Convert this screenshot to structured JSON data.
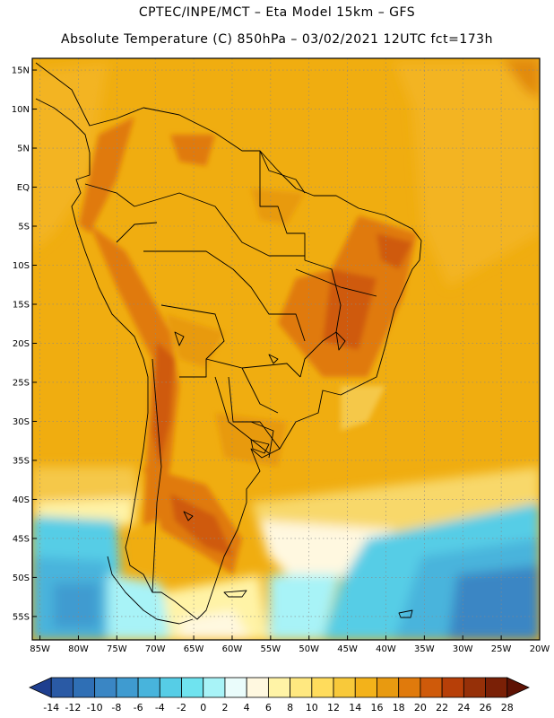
{
  "header": {
    "line1": "CPTEC/INPE/MCT –  Eta Model 15km – GFS",
    "line2": "Absolute Temperature (C) 850hPa – 03/02/2021 12UTC fct=173h"
  },
  "axes": {
    "lat_labels": [
      "15N",
      "10N",
      "5N",
      "EQ",
      "5S",
      "10S",
      "15S",
      "20S",
      "25S",
      "30S",
      "35S",
      "40S",
      "45S",
      "50S",
      "55S"
    ],
    "lat_values": [
      15,
      10,
      5,
      0,
      -5,
      -10,
      -15,
      -20,
      -25,
      -30,
      -35,
      -40,
      -45,
      -50,
      -55
    ],
    "lon_labels": [
      "85W",
      "80W",
      "75W",
      "70W",
      "65W",
      "60W",
      "55W",
      "50W",
      "45W",
      "40W",
      "35W",
      "30W",
      "25W",
      "20W"
    ],
    "lon_values": [
      -85,
      -80,
      -75,
      -70,
      -65,
      -60,
      -55,
      -50,
      -45,
      -40,
      -35,
      -30,
      -25,
      -20
    ],
    "lat_range": [
      -58,
      16.5
    ],
    "lon_range": [
      -86,
      -20
    ]
  },
  "colorbar": {
    "ticks": [
      "-14",
      "-12",
      "-10",
      "-8",
      "-6",
      "-4",
      "-2",
      "0",
      "2",
      "4",
      "6",
      "8",
      "10",
      "12",
      "14",
      "16",
      "18",
      "20",
      "22",
      "24",
      "26",
      "28"
    ],
    "colors": [
      "#1f3f8f",
      "#2a5aa5",
      "#2f6fb5",
      "#3a86c4",
      "#3f9bd0",
      "#48b4dc",
      "#56cde6",
      "#6fe3ef",
      "#a8f3f7",
      "#eafcfb",
      "#fff8e0",
      "#fff3a6",
      "#ffe880",
      "#ffdc5c",
      "#f8c93a",
      "#f3b21a",
      "#e89a10",
      "#e07a0c",
      "#cf5a0a",
      "#b73f08",
      "#963008",
      "#7a2006",
      "#5e1204"
    ]
  }
}
